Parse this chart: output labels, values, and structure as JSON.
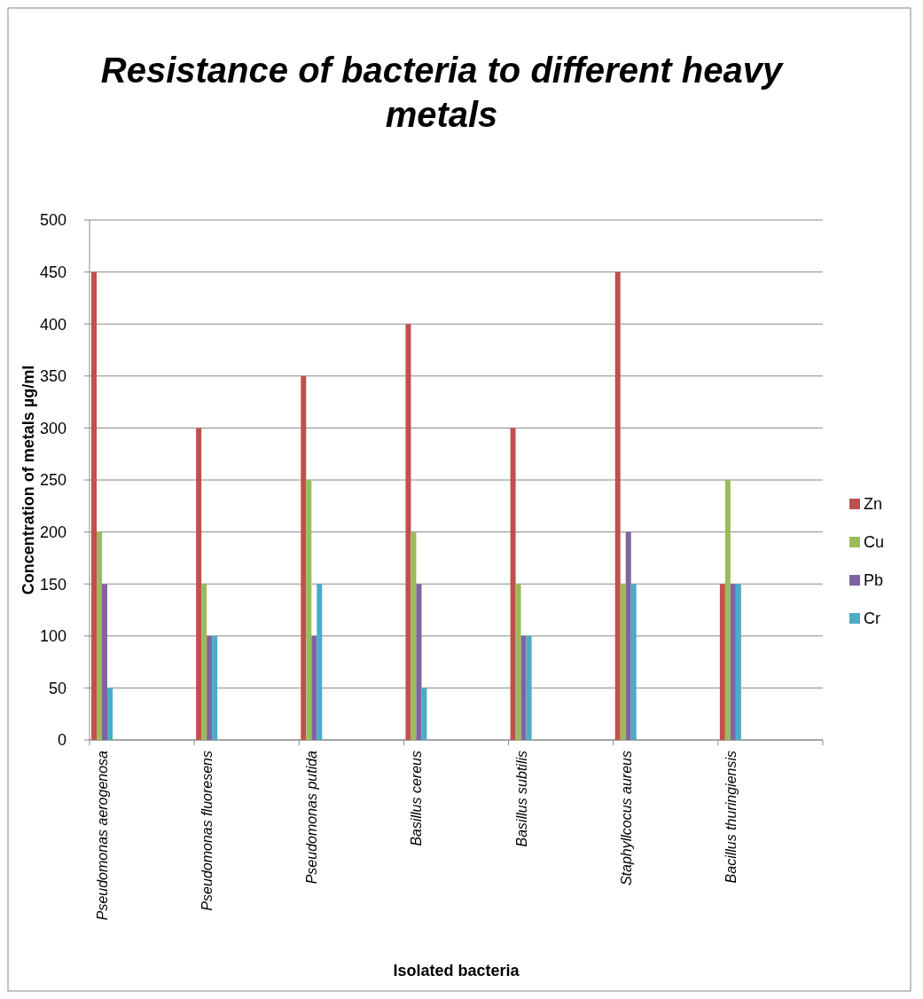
{
  "chart_data": {
    "type": "bar",
    "title": "Resistance of bacteria to different heavy metals",
    "xlabel": "Isolated bacteria",
    "ylabel": "Concentration of metals  µg/ml",
    "categories": [
      "Pseudomonas aerogenosa",
      "Pseudomonas fluoresens",
      "Pseudomonas putida",
      "Basillus cereus",
      "Basillus subtilis",
      "Staphyllcocus aureus",
      "Bacillus thuringiensis"
    ],
    "series": [
      {
        "name": "Zn",
        "color": "#c0504d",
        "values": [
          450,
          300,
          350,
          400,
          300,
          450,
          150
        ]
      },
      {
        "name": "Cu",
        "color": "#9bbb59",
        "values": [
          200,
          150,
          250,
          200,
          150,
          150,
          250
        ]
      },
      {
        "name": "Pb",
        "color": "#8064a2",
        "values": [
          150,
          100,
          100,
          150,
          100,
          200,
          150
        ]
      },
      {
        "name": "Cr",
        "color": "#4bacc6",
        "values": [
          50,
          100,
          150,
          50,
          100,
          150,
          150
        ]
      }
    ],
    "ylim": [
      0,
      500
    ],
    "yticks": [
      0,
      50,
      100,
      150,
      200,
      250,
      300,
      350,
      400,
      450,
      500
    ],
    "grid": "y",
    "legend": "right"
  }
}
